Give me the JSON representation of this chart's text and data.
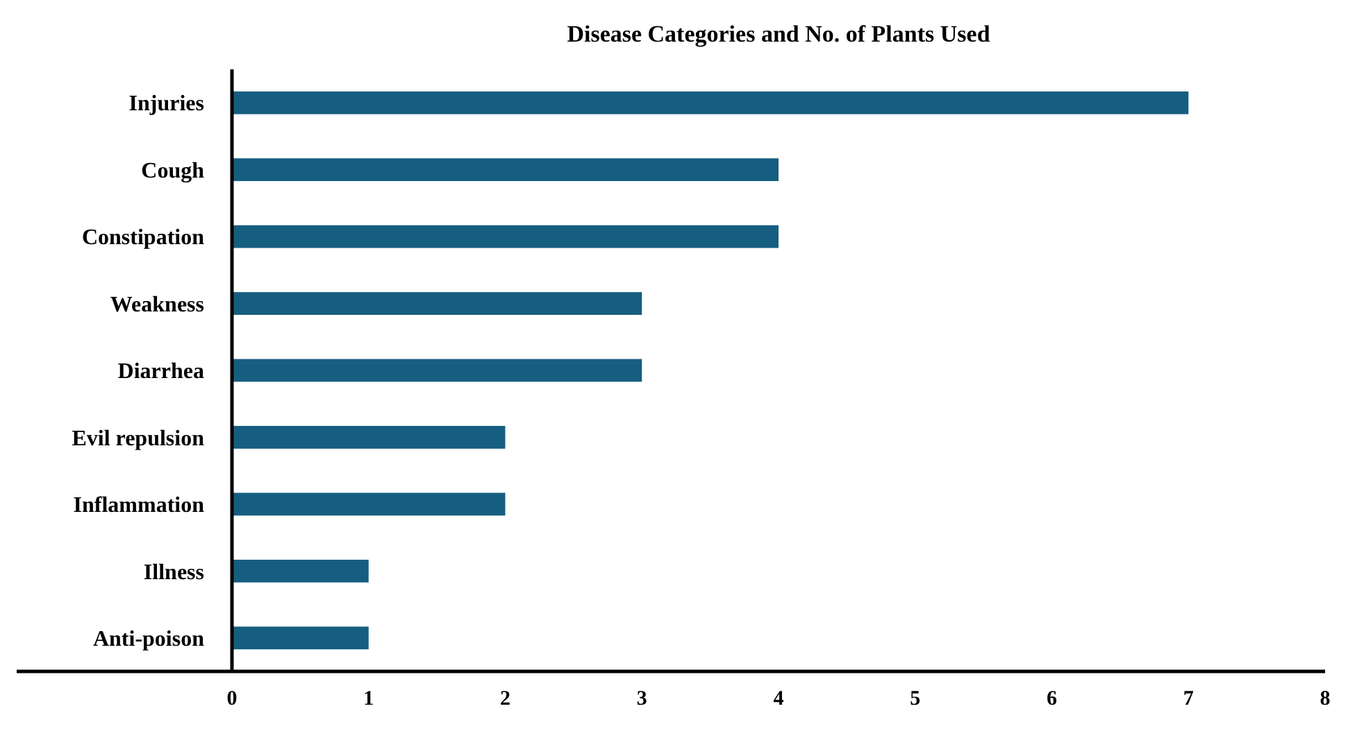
{
  "chart_data": {
    "type": "bar",
    "orientation": "horizontal",
    "title": "Disease Categories and No. of Plants Used",
    "categories": [
      "Injuries",
      "Cough",
      "Constipation",
      "Weakness",
      "Diarrhea",
      "Evil repulsion",
      "Inflammation",
      "Illness",
      "Anti-poison"
    ],
    "values": [
      7,
      4,
      4,
      3,
      3,
      2,
      2,
      1,
      1
    ],
    "color": "#165e80",
    "xlim": [
      0,
      8
    ],
    "xticks": [
      0,
      1,
      2,
      3,
      4,
      5,
      6,
      7,
      8
    ],
    "grid": false
  }
}
